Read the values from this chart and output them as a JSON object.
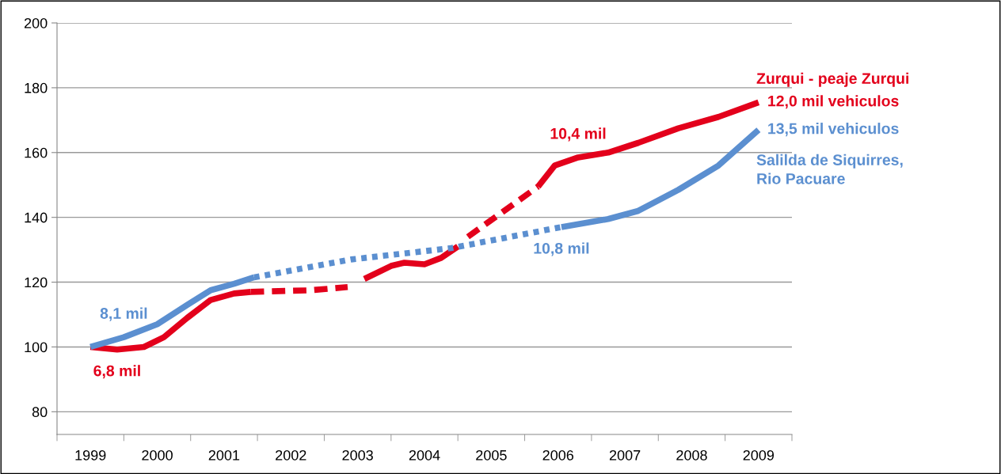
{
  "chart_data": {
    "type": "line",
    "ylim": [
      73,
      200
    ],
    "yticks": [
      80,
      100,
      120,
      140,
      160,
      180,
      200
    ],
    "xlim": [
      1998.5,
      2009.5
    ],
    "xticks": [
      {
        "value": 1998.5,
        "label": null
      },
      {
        "value": 1999,
        "label": "1999"
      },
      {
        "value": 1999.5,
        "label": null
      },
      {
        "value": 2000,
        "label": "2000"
      },
      {
        "value": 2000.5,
        "label": null
      },
      {
        "value": 2001,
        "label": "2001"
      },
      {
        "value": 2001.5,
        "label": null
      },
      {
        "value": 2002,
        "label": "2002"
      },
      {
        "value": 2002.5,
        "label": null
      },
      {
        "value": 2003,
        "label": "2003"
      },
      {
        "value": 2003.5,
        "label": null
      },
      {
        "value": 2004,
        "label": "2004"
      },
      {
        "value": 2004.5,
        "label": null
      },
      {
        "value": 2005,
        "label": "2005"
      },
      {
        "value": 2005.5,
        "label": null
      },
      {
        "value": 2006,
        "label": "2006"
      },
      {
        "value": 2006.5,
        "label": null
      },
      {
        "value": 2007,
        "label": "2007"
      },
      {
        "value": 2007.5,
        "label": null
      },
      {
        "value": 2008,
        "label": "2008"
      },
      {
        "value": 2008.5,
        "label": null
      },
      {
        "value": 2009,
        "label": "2009"
      },
      {
        "value": 2009.5,
        "label": null
      }
    ],
    "grid": "y",
    "legend": false,
    "marker": "none",
    "annotations": [
      {
        "text": "6,8 mil",
        "x": 1999.4,
        "y": 99.2
      },
      {
        "text": "8,1 mil",
        "x": 1999.5,
        "y": 103
      },
      {
        "text": "10,4 mil",
        "x": 2006.3,
        "y": 158.5
      },
      {
        "text": "10,8 mil",
        "x": 2006.05,
        "y": 137
      },
      {
        "text": "12,0 mil vehiculos",
        "x": 2009,
        "y": 175.5
      },
      {
        "text": "13,5 mil vehiculos",
        "x": 2009,
        "y": 167
      }
    ],
    "series": [
      {
        "color": "#e3001b",
        "line_style": "solid",
        "x": [
          1999,
          1999.4,
          1999.8,
          2000.1,
          2000.45,
          2000.8,
          2001.15,
          2001.4
        ],
        "values": [
          100,
          99.2,
          100,
          103,
          109,
          114.5,
          116.5,
          117
        ]
      },
      {
        "color": "#e3001b",
        "line_style": "dashed",
        "x": [
          2001.4,
          2002.3,
          2002.85
        ],
        "values": [
          117,
          117.5,
          118.5
        ]
      },
      {
        "color": "#e3001b",
        "line_style": "solid",
        "x": [
          2003.1,
          2003.5,
          2003.7,
          2004,
          2004.25,
          2004.5
        ],
        "values": [
          121,
          125,
          126,
          125.5,
          127.5,
          131
        ]
      },
      {
        "color": "#e3001b",
        "line_style": "dashed",
        "x": [
          2004.65,
          2005.7
        ],
        "values": [
          134,
          149.5
        ]
      },
      {
        "name": "Zurqui - peaje Zurqui",
        "color": "#e3001b",
        "line_style": "solid",
        "x": [
          2005.7,
          2005.95,
          2006.3,
          2006.75,
          2007.2,
          2007.8,
          2008.4,
          2009
        ],
        "values": [
          149.5,
          156,
          158.5,
          160,
          163,
          167.5,
          171,
          175.5
        ]
      },
      {
        "color": "#5b8fd0",
        "line_style": "solid",
        "x": [
          1999,
          1999.5,
          2000,
          2000.45,
          2000.8,
          2001.15,
          2001.45
        ],
        "values": [
          100,
          103,
          107,
          113,
          117.5,
          119.5,
          121.5
        ]
      },
      {
        "color": "#5b8fd0",
        "line_style": "dotted",
        "x": [
          2001.45,
          2002.9,
          2004.4,
          2006.05
        ],
        "values": [
          121.5,
          127,
          130.5,
          137
        ]
      },
      {
        "name": "Salilda de Siquirres,\nRio Pacuare",
        "color": "#5b8fd0",
        "line_style": "solid",
        "x": [
          2006.05,
          2006.75,
          2007.2,
          2007.8,
          2008.4,
          2009
        ],
        "values": [
          137,
          139.5,
          142,
          148.5,
          156,
          167
        ]
      }
    ]
  }
}
